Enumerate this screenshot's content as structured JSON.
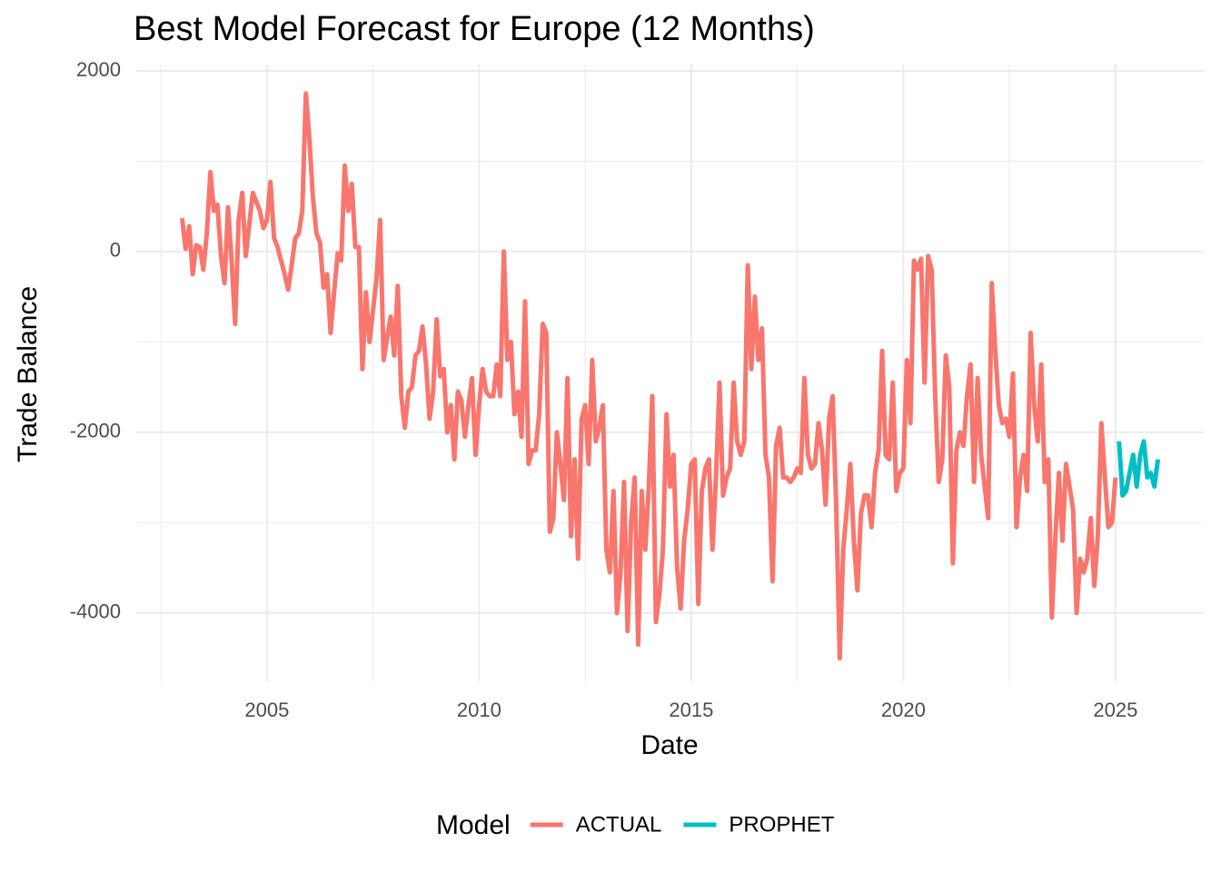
{
  "chart_data": {
    "type": "line",
    "title": "Best Model Forecast for Europe (12 Months)",
    "x_label": "Date",
    "y_label": "Trade Balance",
    "legend_title": "Model",
    "legend_position": "bottom",
    "grid": true,
    "xlim": [
      2001.92,
      2027.08
    ],
    "xticks": [
      2005,
      2010,
      2015,
      2020,
      2025
    ],
    "ylim": [
      -4755,
      2080
    ],
    "yticks": [
      -4000,
      -2000,
      0,
      2000
    ],
    "series": [
      {
        "name": "ACTUAL",
        "color": "#F8766D",
        "x": [
          2003,
          2003.083,
          2003.167,
          2003.25,
          2003.333,
          2003.417,
          2003.5,
          2003.583,
          2003.667,
          2003.75,
          2003.833,
          2003.917,
          2004,
          2004.083,
          2004.167,
          2004.25,
          2004.333,
          2004.417,
          2004.5,
          2004.583,
          2004.667,
          2004.75,
          2004.833,
          2004.917,
          2005,
          2005.083,
          2005.167,
          2005.25,
          2005.333,
          2005.417,
          2005.5,
          2005.583,
          2005.667,
          2005.75,
          2005.833,
          2005.917,
          2006,
          2006.083,
          2006.167,
          2006.25,
          2006.333,
          2006.417,
          2006.5,
          2006.583,
          2006.667,
          2006.75,
          2006.833,
          2006.917,
          2007,
          2007.083,
          2007.167,
          2007.25,
          2007.333,
          2007.417,
          2007.5,
          2007.583,
          2007.667,
          2007.75,
          2007.833,
          2007.917,
          2008,
          2008.083,
          2008.167,
          2008.25,
          2008.333,
          2008.417,
          2008.5,
          2008.583,
          2008.667,
          2008.75,
          2008.833,
          2008.917,
          2009,
          2009.083,
          2009.167,
          2009.25,
          2009.333,
          2009.417,
          2009.5,
          2009.583,
          2009.667,
          2009.75,
          2009.833,
          2009.917,
          2010,
          2010.083,
          2010.167,
          2010.25,
          2010.333,
          2010.417,
          2010.5,
          2010.583,
          2010.667,
          2010.75,
          2010.833,
          2010.917,
          2011,
          2011.083,
          2011.167,
          2011.25,
          2011.333,
          2011.417,
          2011.5,
          2011.583,
          2011.667,
          2011.75,
          2011.833,
          2011.917,
          2012,
          2012.083,
          2012.167,
          2012.25,
          2012.333,
          2012.417,
          2012.5,
          2012.583,
          2012.667,
          2012.75,
          2012.833,
          2012.917,
          2013,
          2013.083,
          2013.167,
          2013.25,
          2013.333,
          2013.417,
          2013.5,
          2013.583,
          2013.667,
          2013.75,
          2013.833,
          2013.917,
          2014,
          2014.083,
          2014.167,
          2014.25,
          2014.333,
          2014.417,
          2014.5,
          2014.583,
          2014.667,
          2014.75,
          2014.833,
          2014.917,
          2015,
          2015.083,
          2015.167,
          2015.25,
          2015.333,
          2015.417,
          2015.5,
          2015.583,
          2015.667,
          2015.75,
          2015.833,
          2015.917,
          2016,
          2016.083,
          2016.167,
          2016.25,
          2016.333,
          2016.417,
          2016.5,
          2016.583,
          2016.667,
          2016.75,
          2016.833,
          2016.917,
          2017,
          2017.083,
          2017.167,
          2017.25,
          2017.333,
          2017.417,
          2017.5,
          2017.583,
          2017.667,
          2017.75,
          2017.833,
          2017.917,
          2018,
          2018.083,
          2018.167,
          2018.25,
          2018.333,
          2018.417,
          2018.5,
          2018.583,
          2018.667,
          2018.75,
          2018.833,
          2018.917,
          2019,
          2019.083,
          2019.167,
          2019.25,
          2019.333,
          2019.417,
          2019.5,
          2019.583,
          2019.667,
          2019.75,
          2019.833,
          2019.917,
          2020,
          2020.083,
          2020.167,
          2020.25,
          2020.333,
          2020.417,
          2020.5,
          2020.583,
          2020.667,
          2020.75,
          2020.833,
          2020.917,
          2021,
          2021.083,
          2021.167,
          2021.25,
          2021.333,
          2021.417,
          2021.5,
          2021.583,
          2021.667,
          2021.75,
          2021.833,
          2021.917,
          2022,
          2022.083,
          2022.167,
          2022.25,
          2022.333,
          2022.417,
          2022.5,
          2022.583,
          2022.667,
          2022.75,
          2022.833,
          2022.917,
          2023,
          2023.083,
          2023.167,
          2023.25,
          2023.333,
          2023.417,
          2023.5,
          2023.583,
          2023.667,
          2023.75,
          2023.833,
          2023.917,
          2024,
          2024.083,
          2024.167,
          2024.25,
          2024.333,
          2024.417,
          2024.5,
          2024.583,
          2024.667,
          2024.75,
          2024.833,
          2024.917,
          2025
        ],
        "values": [
          370,
          30,
          280,
          -250,
          70,
          50,
          -200,
          200,
          880,
          450,
          520,
          -50,
          -350,
          490,
          -100,
          -800,
          350,
          650,
          -50,
          300,
          650,
          550,
          450,
          260,
          350,
          770,
          150,
          50,
          -100,
          -250,
          -420,
          -150,
          150,
          200,
          450,
          1750,
          1250,
          600,
          200,
          100,
          -400,
          -250,
          -900,
          -450,
          -20,
          -100,
          950,
          450,
          750,
          50,
          50,
          -1300,
          -450,
          -1000,
          -650,
          -300,
          350,
          -1200,
          -950,
          -720,
          -1150,
          -380,
          -1600,
          -1950,
          -1550,
          -1500,
          -1150,
          -1100,
          -830,
          -1250,
          -1850,
          -1550,
          -750,
          -1380,
          -1300,
          -2000,
          -1700,
          -2300,
          -1550,
          -1650,
          -2050,
          -1700,
          -1400,
          -2250,
          -1700,
          -1300,
          -1550,
          -1600,
          -1600,
          -1250,
          -1600,
          0,
          -1200,
          -1000,
          -1800,
          -1550,
          -2050,
          -550,
          -2350,
          -2200,
          -2200,
          -1800,
          -800,
          -900,
          -3100,
          -2950,
          -2000,
          -2350,
          -2750,
          -1400,
          -3150,
          -2300,
          -3400,
          -1850,
          -1700,
          -2350,
          -1200,
          -2100,
          -1950,
          -1700,
          -3300,
          -3550,
          -2650,
          -4000,
          -3550,
          -2550,
          -4200,
          -3000,
          -2500,
          -4350,
          -2650,
          -3300,
          -2600,
          -1600,
          -4100,
          -3800,
          -3300,
          -1800,
          -2600,
          -2250,
          -3500,
          -3950,
          -3200,
          -2850,
          -2350,
          -2300,
          -3900,
          -2650,
          -2400,
          -2300,
          -3300,
          -2500,
          -1450,
          -2700,
          -2500,
          -2400,
          -1450,
          -2100,
          -2250,
          -2100,
          -150,
          -1300,
          -500,
          -1200,
          -850,
          -2250,
          -2500,
          -3650,
          -2150,
          -1950,
          -2500,
          -2500,
          -2550,
          -2500,
          -2400,
          -2450,
          -1400,
          -2250,
          -2400,
          -2350,
          -1900,
          -2200,
          -2800,
          -1850,
          -1600,
          -2800,
          -4500,
          -3300,
          -2850,
          -2350,
          -3200,
          -3750,
          -2900,
          -2700,
          -2700,
          -3050,
          -2450,
          -2200,
          -1100,
          -2250,
          -2300,
          -1450,
          -2650,
          -2450,
          -2400,
          -1200,
          -1900,
          -100,
          -200,
          -80,
          -1450,
          -50,
          -200,
          -1600,
          -2550,
          -2300,
          -1150,
          -1500,
          -3450,
          -2200,
          -2000,
          -2150,
          -1600,
          -1250,
          -2550,
          -1400,
          -2250,
          -2600,
          -2950,
          -350,
          -1100,
          -1700,
          -1900,
          -1850,
          -2050,
          -1350,
          -3050,
          -2500,
          -2250,
          -2650,
          -900,
          -1700,
          -2100,
          -1250,
          -2550,
          -2300,
          -4050,
          -3150,
          -2450,
          -3200,
          -2350,
          -2600,
          -2850,
          -4000,
          -3400,
          -3550,
          -3400,
          -2950,
          -3700,
          -3150,
          -1900,
          -2500,
          -3050,
          -3000,
          -2500
        ]
      },
      {
        "name": "PROPHET",
        "color": "#00BFC4",
        "x": [
          2025.083,
          2025.167,
          2025.25,
          2025.333,
          2025.417,
          2025.5,
          2025.583,
          2025.667,
          2025.75,
          2025.833,
          2025.917,
          2026
        ],
        "values": [
          -2100,
          -2700,
          -2650,
          -2450,
          -2250,
          -2600,
          -2250,
          -2100,
          -2500,
          -2450,
          -2600,
          -2300
        ]
      }
    ]
  }
}
